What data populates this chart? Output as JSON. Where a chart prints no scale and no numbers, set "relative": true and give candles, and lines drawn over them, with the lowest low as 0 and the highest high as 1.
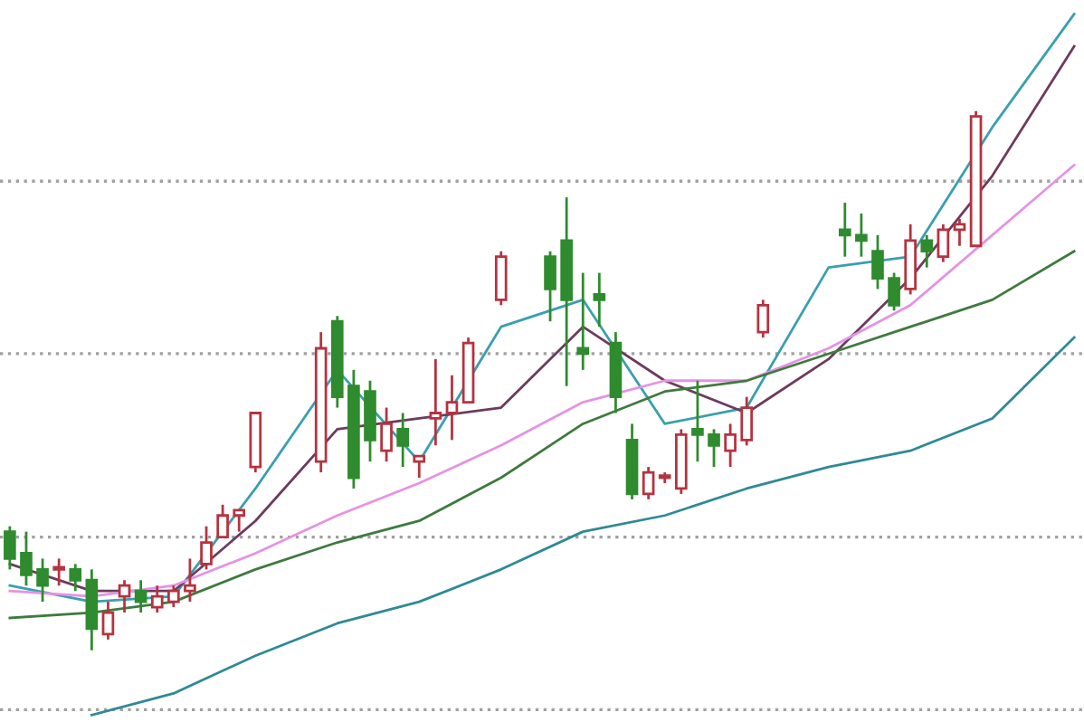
{
  "chart_data": {
    "type": "candlestick",
    "relative": true,
    "categories": [
      null,
      null,
      null,
      null,
      null,
      null,
      null,
      null,
      null,
      null,
      null,
      null,
      null,
      null,
      null,
      null,
      null,
      null,
      null,
      null,
      null,
      null,
      null,
      null,
      null,
      null,
      null,
      null,
      null,
      null,
      null,
      null,
      null,
      null,
      null,
      null,
      null,
      null,
      null,
      null,
      null,
      null,
      null,
      null,
      null,
      null,
      null,
      null,
      null,
      null,
      null,
      null,
      null,
      null,
      null,
      null,
      null,
      null,
      null,
      null,
      null,
      null,
      null,
      null,
      null,
      null
    ],
    "ohlc": [
      [
        0.22,
        0.23,
        0.15,
        0.17
      ],
      [
        0.18,
        0.22,
        0.12,
        0.14
      ],
      [
        0.15,
        0.17,
        0.09,
        0.12
      ],
      [
        0.15,
        0.17,
        0.12,
        0.15
      ],
      [
        0.15,
        0.16,
        0.11,
        0.13
      ],
      [
        0.13,
        0.15,
        0,
        0.04
      ],
      [
        0.03,
        0.09,
        0.02,
        0.07
      ],
      [
        0.1,
        0.13,
        0.07,
        0.12
      ],
      [
        0.11,
        0.13,
        0.07,
        0.09
      ],
      [
        0.08,
        0.12,
        0.07,
        0.1
      ],
      [
        0.09,
        0.12,
        0.08,
        0.11
      ],
      [
        0.11,
        0.17,
        0.09,
        0.12
      ],
      [
        0.16,
        0.23,
        0.15,
        0.2
      ],
      [
        0.21,
        0.27,
        0.21,
        0.25
      ],
      [
        0.25,
        0.26,
        0.22,
        0.26
      ],
      [
        0.34,
        0.44,
        0.33,
        0.44
      ],
      null,
      null,
      null,
      [
        0.35,
        0.59,
        0.33,
        0.56
      ],
      [
        0.61,
        0.62,
        0.45,
        0.47
      ],
      [
        0.49,
        0.52,
        0.3,
        0.32
      ],
      [
        0.48,
        0.5,
        0.35,
        0.39
      ],
      [
        0.37,
        0.45,
        0.35,
        0.42
      ],
      [
        0.41,
        0.44,
        0.34,
        0.38
      ],
      [
        0.35,
        0.36,
        0.32,
        0.36
      ],
      [
        0.43,
        0.54,
        0.38,
        0.44
      ],
      [
        0.44,
        0.51,
        0.39,
        0.46
      ],
      [
        0.46,
        0.58,
        0.46,
        0.57
      ],
      null,
      [
        0.65,
        0.74,
        0.64,
        0.73
      ],
      null,
      null,
      [
        0.73,
        0.74,
        0.61,
        0.67
      ],
      [
        0.76,
        0.84,
        0.49,
        0.65
      ],
      [
        0.56,
        0.7,
        0.52,
        0.55
      ],
      [
        0.66,
        0.7,
        0.6,
        0.65
      ],
      [
        0.57,
        0.59,
        0.44,
        0.47
      ],
      [
        0.39,
        0.42,
        0.28,
        0.29
      ],
      [
        0.29,
        0.34,
        0.28,
        0.33
      ],
      [
        0.32,
        0.33,
        0.31,
        0.32
      ],
      [
        0.3,
        0.41,
        0.29,
        0.4
      ],
      [
        0.41,
        0.5,
        0.35,
        0.4
      ],
      [
        0.4,
        0.41,
        0.34,
        0.38
      ],
      [
        0.37,
        0.42,
        0.34,
        0.4
      ],
      [
        0.39,
        0.47,
        0.38,
        0.45
      ],
      [
        0.59,
        0.65,
        0.58,
        0.64
      ],
      null,
      null,
      null,
      null,
      [
        0.78,
        0.83,
        0.73,
        0.77
      ],
      [
        0.77,
        0.81,
        0.73,
        0.76
      ],
      [
        0.74,
        0.77,
        0.67,
        0.69
      ],
      [
        0.69,
        0.7,
        0.63,
        0.64
      ],
      [
        0.67,
        0.79,
        0.66,
        0.76
      ],
      [
        0.76,
        0.77,
        0.71,
        0.74
      ],
      [
        0.73,
        0.79,
        0.72,
        0.78
      ],
      [
        0.78,
        0.8,
        0.75,
        0.79
      ],
      [
        0.75,
        1.0,
        0.75,
        0.99
      ],
      null,
      null,
      null,
      null,
      null,
      null
    ],
    "series": [
      {
        "type": "line",
        "color": "#3a9fb0",
        "values": [
          0.12,
          null,
          null,
          null,
          null,
          0.09,
          null,
          null,
          null,
          null,
          0.1,
          null,
          null,
          null,
          null,
          0.3,
          null,
          null,
          null,
          null,
          0.52,
          null,
          null,
          null,
          null,
          0.35,
          null,
          null,
          null,
          null,
          0.6,
          null,
          null,
          null,
          null,
          0.65,
          null,
          null,
          null,
          null,
          0.42,
          null,
          null,
          null,
          null,
          0.45,
          null,
          null,
          null,
          null,
          0.71,
          null,
          null,
          null,
          null,
          0.73,
          null,
          null,
          null,
          null,
          0.97,
          null,
          null,
          null,
          null,
          1.18
        ]
      },
      {
        "type": "line",
        "color": "#6e3a5e",
        "values": [
          0.16,
          null,
          null,
          null,
          null,
          0.11,
          null,
          null,
          null,
          null,
          0.11,
          null,
          null,
          null,
          null,
          0.24,
          null,
          null,
          null,
          null,
          0.41,
          null,
          null,
          null,
          null,
          0.43,
          null,
          null,
          null,
          null,
          0.45,
          null,
          null,
          null,
          null,
          0.6,
          null,
          null,
          null,
          null,
          0.5,
          null,
          null,
          null,
          null,
          0.44,
          null,
          null,
          null,
          null,
          0.54,
          null,
          null,
          null,
          null,
          0.69,
          null,
          null,
          null,
          null,
          0.88,
          null,
          null,
          null,
          null,
          1.12
        ]
      },
      {
        "type": "line",
        "color": "#e493e4",
        "values": [
          0.11,
          null,
          null,
          null,
          null,
          0.1,
          null,
          null,
          null,
          null,
          0.12,
          null,
          null,
          null,
          null,
          0.18,
          null,
          null,
          null,
          null,
          0.25,
          null,
          null,
          null,
          null,
          0.31,
          null,
          null,
          null,
          null,
          0.38,
          null,
          null,
          null,
          null,
          0.46,
          null,
          null,
          null,
          null,
          0.5,
          null,
          null,
          null,
          null,
          0.5,
          null,
          null,
          null,
          null,
          0.56,
          null,
          null,
          null,
          null,
          0.64,
          null,
          null,
          null,
          null,
          0.77,
          null,
          null,
          null,
          null,
          0.9
        ]
      },
      {
        "type": "line",
        "color": "#3f7a3f",
        "values": [
          0.06,
          null,
          null,
          null,
          null,
          0.07,
          null,
          null,
          null,
          null,
          0.09,
          null,
          null,
          null,
          null,
          0.15,
          null,
          null,
          null,
          null,
          0.2,
          null,
          null,
          null,
          null,
          0.24,
          null,
          null,
          null,
          null,
          0.32,
          null,
          null,
          null,
          null,
          0.42,
          null,
          null,
          null,
          null,
          0.48,
          null,
          null,
          null,
          null,
          0.5,
          null,
          null,
          null,
          null,
          0.55,
          null,
          null,
          null,
          null,
          0.6,
          null,
          null,
          null,
          null,
          0.65,
          null,
          null,
          null,
          null,
          0.74
        ]
      },
      {
        "type": "line",
        "color": "#2f8a96",
        "values": [
          null,
          null,
          null,
          null,
          null,
          -0.12,
          null,
          null,
          null,
          null,
          -0.08,
          null,
          null,
          null,
          null,
          -0.01,
          null,
          null,
          null,
          null,
          0.05,
          null,
          null,
          null,
          null,
          0.09,
          null,
          null,
          null,
          null,
          0.15,
          null,
          null,
          null,
          null,
          0.22,
          null,
          null,
          null,
          null,
          0.25,
          null,
          null,
          null,
          null,
          0.3,
          null,
          null,
          null,
          null,
          0.34,
          null,
          null,
          null,
          null,
          0.37,
          null,
          null,
          null,
          null,
          0.43,
          null,
          null,
          null,
          null,
          0.58
        ]
      }
    ],
    "ref_lines": [
      {
        "axis": "y",
        "value": 0.87,
        "color": "#a0a0a0",
        "line_style": "dotted"
      },
      {
        "axis": "y",
        "value": 0.55,
        "color": "#a0a0a0",
        "line_style": "dotted"
      },
      {
        "axis": "y",
        "value": 0.21,
        "color": "#a0a0a0",
        "line_style": "dotted"
      },
      {
        "axis": "y",
        "value": -0.11,
        "color": "#a0a0a0",
        "line_style": "dotted"
      }
    ]
  }
}
